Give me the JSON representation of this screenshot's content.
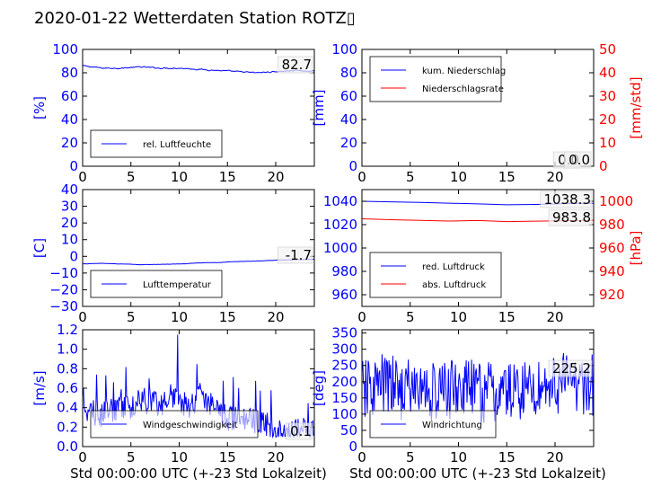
{
  "page": {
    "title": "2020-01-22 Wetterdaten Station ROTZ▯",
    "xlabel": "Std 00:00:00 UTC (+-23 Std Lokalzeit)"
  },
  "colors": {
    "blue": "#0000ff",
    "red": "#ff0000",
    "axis": "#000000"
  },
  "chart_data": [
    {
      "id": "humidity",
      "type": "line",
      "xlim": [
        0,
        24
      ],
      "xticks": [
        0,
        5,
        10,
        15,
        20
      ],
      "ylim": [
        0,
        100
      ],
      "yticks": [
        0,
        20,
        40,
        60,
        80,
        100
      ],
      "ylabel": "[%]",
      "ylabel_color": "blue",
      "legend": {
        "loc": "lower-left",
        "entries": [
          {
            "label": "rel. Luftfeuchte",
            "color": "blue"
          }
        ]
      },
      "annotations": [
        "82.7"
      ],
      "series": [
        {
          "name": "rel. Luftfeuchte",
          "color": "blue",
          "axis": "left",
          "noise": 0.8,
          "x": [
            0,
            2,
            4,
            6,
            8,
            10,
            12,
            14,
            16,
            18,
            20,
            22,
            24
          ],
          "y": [
            86,
            84,
            84,
            85,
            84,
            84,
            83,
            82,
            81,
            80,
            81,
            82,
            81
          ]
        }
      ]
    },
    {
      "id": "precip",
      "type": "line",
      "xlim": [
        0,
        24
      ],
      "xticks": [
        0,
        5,
        10,
        15,
        20
      ],
      "ylim": [
        0,
        100
      ],
      "yticks": [
        0,
        20,
        40,
        60,
        80,
        100
      ],
      "ylabel": "[mm]",
      "ylabel_color": "blue",
      "ylim2": [
        0,
        50
      ],
      "yticks2": [
        0,
        10,
        20,
        30,
        40,
        50
      ],
      "ylabel2": "[mm/std]",
      "ylabel2_color": "red",
      "legend": {
        "loc": "upper-left",
        "entries": [
          {
            "label": "kum. Niederschlag",
            "color": "blue"
          },
          {
            "label": "Niederschlagsrate",
            "color": "red"
          }
        ]
      },
      "annotations": [
        "0.0",
        "0.0"
      ],
      "series": [
        {
          "name": "kum. Niederschlag",
          "color": "blue",
          "axis": "left",
          "x": [
            0,
            24
          ],
          "y": [
            0,
            0
          ]
        },
        {
          "name": "Niederschlagsrate",
          "color": "red",
          "axis": "right",
          "x": [
            0,
            24
          ],
          "y": [
            0,
            0
          ]
        }
      ]
    },
    {
      "id": "temperature",
      "type": "line",
      "xlim": [
        0,
        24
      ],
      "xticks": [
        0,
        5,
        10,
        15,
        20
      ],
      "ylim": [
        -30,
        40
      ],
      "yticks": [
        -30,
        -20,
        -10,
        0,
        10,
        20,
        30,
        40
      ],
      "ylabel": "[C]",
      "ylabel_color": "blue",
      "legend": {
        "loc": "lower-left",
        "entries": [
          {
            "label": "Lufttemperatur",
            "color": "blue"
          }
        ]
      },
      "annotations": [
        "-1.7"
      ],
      "series": [
        {
          "name": "Lufttemperatur",
          "color": "blue",
          "axis": "left",
          "noise": 0.15,
          "x": [
            0,
            2,
            4,
            6,
            8,
            10,
            12,
            14,
            16,
            18,
            20,
            22,
            24
          ],
          "y": [
            -4.5,
            -4.2,
            -4.6,
            -5.0,
            -4.8,
            -4.6,
            -4.0,
            -3.7,
            -3.1,
            -2.8,
            -2.3,
            -2.0,
            -1.7
          ]
        }
      ]
    },
    {
      "id": "pressure",
      "type": "line",
      "xlim": [
        0,
        24
      ],
      "xticks": [
        0,
        5,
        10,
        15,
        20
      ],
      "ylim": [
        950,
        1050
      ],
      "yticks": [
        960,
        980,
        1000,
        1020,
        1040
      ],
      "ylabel": "",
      "ylabel_color": "blue",
      "ylim2": [
        910,
        1010
      ],
      "yticks2": [
        920,
        940,
        960,
        980,
        1000
      ],
      "ylabel2": "[hPa]",
      "ylabel2_color": "red",
      "legend": {
        "loc": "lower-left",
        "entries": [
          {
            "label": "red. Luftdruck",
            "color": "blue"
          },
          {
            "label": "abs. Luftdruck",
            "color": "red"
          }
        ]
      },
      "annotations": [
        "1038.3",
        "983.8"
      ],
      "series": [
        {
          "name": "red. Luftdruck",
          "color": "blue",
          "axis": "left",
          "x": [
            0,
            3,
            6,
            9,
            12,
            15,
            18,
            21,
            24
          ],
          "y": [
            1040,
            1039.5,
            1039,
            1038.4,
            1037.8,
            1037,
            1037.3,
            1038,
            1038.3
          ]
        },
        {
          "name": "abs. Luftdruck",
          "color": "red",
          "axis": "right",
          "x": [
            0,
            3,
            6,
            9,
            12,
            15,
            18,
            21,
            24
          ],
          "y": [
            985,
            984.2,
            983.6,
            983.1,
            983.5,
            982.6,
            983,
            983.4,
            983.8
          ]
        }
      ]
    },
    {
      "id": "windspeed",
      "type": "line",
      "xlim": [
        0,
        24
      ],
      "xticks": [
        0,
        5,
        10,
        15,
        20
      ],
      "ylim": [
        0,
        1.2
      ],
      "yticks": [
        0.0,
        0.2,
        0.4,
        0.6,
        0.8,
        1.0,
        1.2
      ],
      "ylabel": "[m/s]",
      "ylabel_color": "blue",
      "legend": {
        "loc": "lower-left",
        "entries": [
          {
            "label": "Windgeschwindigkeit",
            "color": "blue"
          }
        ]
      },
      "annotations": [
        "0.1"
      ],
      "series": [
        {
          "name": "Windgeschwindigkeit",
          "color": "blue",
          "axis": "left",
          "noise": 0.14,
          "spiky": true,
          "x": [
            0,
            1,
            2,
            3,
            4,
            5,
            6,
            7,
            8,
            9,
            10,
            11,
            12,
            13,
            14,
            15,
            16,
            17,
            18,
            19,
            20,
            21,
            22,
            23,
            24
          ],
          "y": [
            0.45,
            0.35,
            0.32,
            0.38,
            0.42,
            0.38,
            0.5,
            0.45,
            0.42,
            0.55,
            0.48,
            0.42,
            0.52,
            0.48,
            0.35,
            0.3,
            0.28,
            0.25,
            0.28,
            0.22,
            0.2,
            0.17,
            0.14,
            0.18,
            0.12
          ]
        }
      ]
    },
    {
      "id": "winddir",
      "type": "line",
      "xlim": [
        0,
        24
      ],
      "xticks": [
        0,
        5,
        10,
        15,
        20
      ],
      "ylim": [
        0,
        360
      ],
      "yticks": [
        0,
        50,
        100,
        150,
        200,
        250,
        300,
        350
      ],
      "ylabel": "[deg]",
      "ylabel_color": "blue",
      "legend": {
        "loc": "lower-left",
        "entries": [
          {
            "label": "Windrichtung",
            "color": "blue"
          }
        ]
      },
      "annotations": [
        "225.2"
      ],
      "series": [
        {
          "name": "Windrichtung",
          "color": "blue",
          "axis": "left",
          "noise": 70,
          "spiky": false,
          "x": [
            0,
            2,
            4,
            6,
            8,
            10,
            12,
            14,
            16,
            18,
            20,
            22,
            24
          ],
          "y": [
            170,
            190,
            180,
            175,
            165,
            185,
            170,
            160,
            175,
            180,
            195,
            200,
            190
          ]
        }
      ]
    }
  ]
}
